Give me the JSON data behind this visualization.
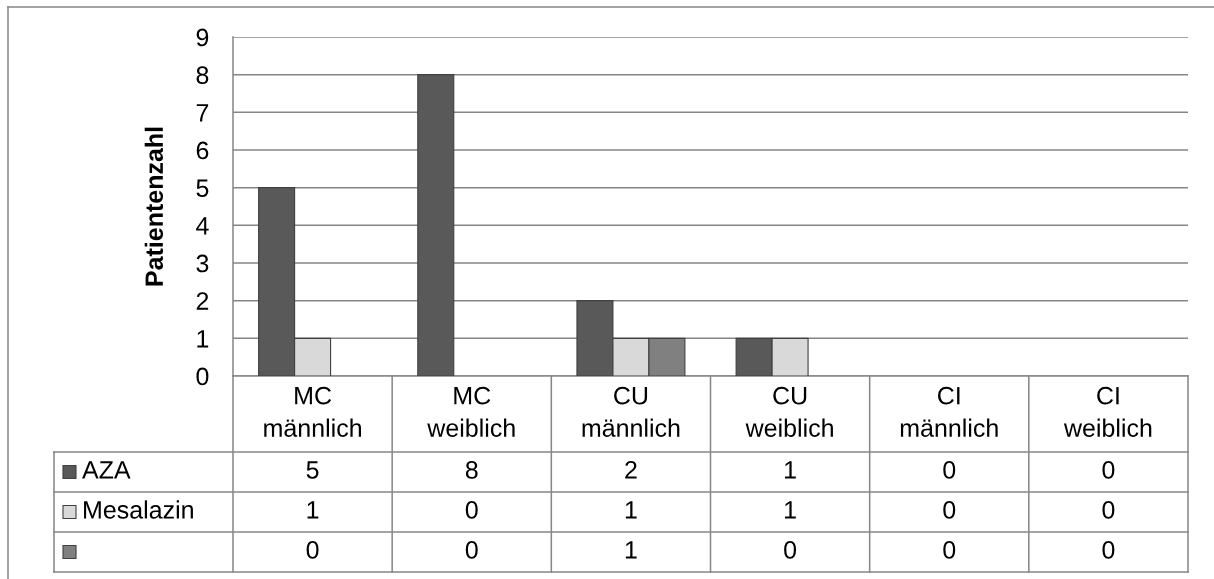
{
  "chart_data": {
    "type": "bar",
    "ylabel": "Patientenzahl",
    "categories": [
      "MC\nmännlich",
      "MC\nweiblich",
      "CU\nmännlich",
      "CU\nweiblich",
      "CI\nmännlich",
      "CI\nweiblich"
    ],
    "series": [
      {
        "name": "AZA",
        "color": "#595959",
        "values": [
          5,
          8,
          2,
          1,
          0,
          0
        ]
      },
      {
        "name": "Mesalazin",
        "color": "#d9d9d9",
        "values": [
          1,
          0,
          1,
          1,
          0,
          0
        ]
      },
      {
        "color": "#808080",
        "values": [
          0,
          0,
          1,
          0,
          0,
          0
        ]
      }
    ],
    "ylim": [
      0,
      9
    ],
    "yticks": [
      0,
      1,
      2,
      3,
      4,
      5,
      6,
      7,
      8,
      9
    ],
    "grid": "y",
    "legend": "bottom",
    "data_labels": true
  }
}
